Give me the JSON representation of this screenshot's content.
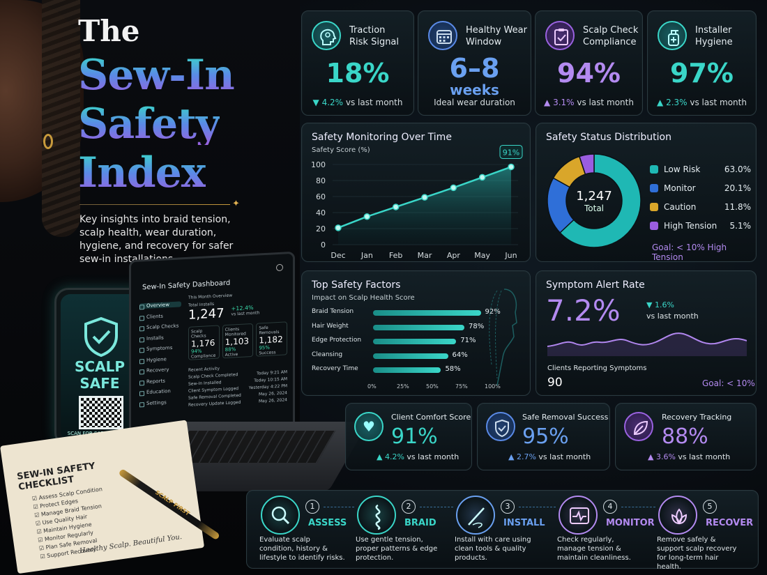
{
  "hero": {
    "title_the": "The",
    "title_line1": "Sew-In",
    "title_line2": "Safety",
    "title_line3": "Index",
    "subtitle": "Key insights into braid tension, scalp health, wear duration, hygiene, and recovery for safer sew-in installations."
  },
  "phone": {
    "brand": "SCALP SAFE",
    "scan_text": "SCAN FOR SAFE HAIR TIPS"
  },
  "laptop": {
    "title": "Sew-In Safety Dashboard",
    "nav": [
      "Overview",
      "Clients",
      "Scalp Checks",
      "Installs",
      "Symptoms",
      "Hygiene",
      "Recovery",
      "Reports",
      "Education",
      "Settings"
    ],
    "overview_label": "This Month Overview",
    "total_label": "Total Installs",
    "total_value": "1,247",
    "total_delta": "+12.4%",
    "total_delta_note": "vs last month",
    "cards": [
      {
        "label": "Scalp Checks",
        "value": "1,176",
        "pct": "94%",
        "note": "Compliance"
      },
      {
        "label": "Clients Monitored",
        "value": "1,103",
        "pct": "88%",
        "note": "Active"
      },
      {
        "label": "Safe Removals",
        "value": "1,182",
        "pct": "95%",
        "note": "Success"
      }
    ],
    "activity_label": "Recent Activity",
    "activity": [
      "Scalp Check Completed",
      "Sew-In Installed",
      "Client Symptom Logged",
      "Safe Removal Completed",
      "Recovery Update Logged"
    ],
    "activity_times": [
      "Today 9:21 AM",
      "Today 10:15 AM",
      "Yesterday 4:22 PM",
      "May 26, 2024",
      "May 26, 2024"
    ]
  },
  "notebook": {
    "title": "SEW-IN SAFETY CHECKLIST",
    "items": [
      "Assess Scalp Condition",
      "Protect Edges",
      "Manage Braid Tension",
      "Use Quality Hair",
      "Maintain Hygiene",
      "Monitor Regularly",
      "Plan Safe Removal",
      "Support Recovery"
    ],
    "footer": "Healthy Scalp. Beautiful You."
  },
  "pen_text": "SCALP FIRST",
  "kpis": [
    {
      "label_1": "Traction",
      "label_2": "Risk Signal",
      "value": "18%",
      "value_sub": "",
      "delta": "▼ 4.2%",
      "delta_note": "vs last month",
      "icon": "head-profile-icon",
      "accent": "#3ad6c8"
    },
    {
      "label_1": "Healthy Wear",
      "label_2": "Window",
      "value": "6–8",
      "value_sub": "weeks",
      "delta": "",
      "delta_note": "Ideal wear duration",
      "icon": "calendar-icon",
      "accent": "#5a8ae6"
    },
    {
      "label_1": "Scalp Check",
      "label_2": "Compliance",
      "value": "94%",
      "value_sub": "",
      "delta": "▲ 3.1%",
      "delta_note": "vs last month",
      "icon": "clipboard-check-icon",
      "accent": "#9a62e0"
    },
    {
      "label_1": "Installer",
      "label_2": "Hygiene",
      "value": "97%",
      "value_sub": "",
      "delta": "▲ 2.3%",
      "delta_note": "vs last month",
      "icon": "sanitizer-icon",
      "accent": "#3ad6c8"
    }
  ],
  "monitoring": {
    "title": "Safety Monitoring Over Time",
    "ylabel": "Safety Score (%)",
    "callout": "91%"
  },
  "distribution": {
    "title": "Safety Status Distribution",
    "total_value": "1,247",
    "total_label": "Total",
    "goal": "Goal: < 10% High Tension"
  },
  "factors": {
    "title": "Top Safety Factors",
    "subtitle": "Impact on Scalp Health Score"
  },
  "symptom": {
    "title": "Symptom Alert Rate",
    "value": "7.2%",
    "delta": "▼ 1.6%",
    "delta_note": "vs last month",
    "clients_label": "Clients Reporting Symptoms",
    "clients_value": "90",
    "goal": "Goal: < 10%"
  },
  "bottom_kpis": [
    {
      "label": "Client Comfort Score",
      "value": "91%",
      "delta": "▲ 4.2%",
      "delta_note": "vs last month",
      "icon": "heart-icon",
      "accent": "#3ad6c8"
    },
    {
      "label": "Safe Removal Success",
      "value": "95%",
      "delta": "▲ 2.7%",
      "delta_note": "vs last month",
      "icon": "shield-check-icon",
      "accent": "#5a8ae6"
    },
    {
      "label": "Recovery Tracking",
      "value": "88%",
      "delta": "▲ 3.6%",
      "delta_note": "vs last month",
      "icon": "leaf-icon",
      "accent": "#9a62e0"
    }
  ],
  "steps": [
    {
      "num": "1",
      "name": "ASSESS",
      "desc": "Evaluate scalp condition, history & lifestyle to identify risks.",
      "icon": "magnifier-icon",
      "accent": "#3ad6c8"
    },
    {
      "num": "2",
      "name": "BRAID",
      "desc": "Use gentle tension, proper patterns & edge protection.",
      "icon": "braid-icon",
      "accent": "#3ad6c8"
    },
    {
      "num": "3",
      "name": "INSTALL",
      "desc": "Install with care using clean tools & quality products.",
      "icon": "needle-icon",
      "accent": "#6aa0f0"
    },
    {
      "num": "4",
      "name": "MONITOR",
      "desc": "Check regularly, manage tension & maintain cleanliness.",
      "icon": "calendar-pulse-icon",
      "accent": "#b38af0"
    },
    {
      "num": "5",
      "name": "RECOVER",
      "desc": "Remove safely & support scalp recovery for long-term hair health.",
      "icon": "lotus-icon",
      "accent": "#b38af0"
    }
  ],
  "chart_data": [
    {
      "type": "area",
      "title": "Safety Monitoring Over Time",
      "ylabel": "Safety Score (%)",
      "categories": [
        "Dec",
        "Jan",
        "Feb",
        "Mar",
        "Apr",
        "May",
        "Jun"
      ],
      "values": [
        21,
        35,
        47,
        59,
        71,
        84,
        97
      ],
      "yticks": [
        0,
        20,
        40,
        60,
        80,
        100
      ],
      "ylim": [
        0,
        100
      ],
      "annotation": "91%"
    },
    {
      "type": "pie",
      "title": "Safety Status Distribution",
      "labels": [
        "Low Risk",
        "Monitor",
        "Caution",
        "High Tension"
      ],
      "values": [
        63.0,
        20.1,
        11.8,
        5.1
      ],
      "value_labels": [
        "63.0%",
        "20.1%",
        "11.8%",
        "5.1%"
      ],
      "colors": [
        "#1fb8b4",
        "#2f6fd8",
        "#d9a62a",
        "#9a5de0"
      ]
    },
    {
      "type": "bar",
      "title": "Top Safety Factors",
      "subtitle": "Impact on Scalp Health Score",
      "categories": [
        "Braid Tension",
        "Hair Weight",
        "Edge Protection",
        "Cleansing",
        "Recovery Time"
      ],
      "values": [
        92,
        78,
        71,
        64,
        58
      ],
      "value_labels": [
        "92%",
        "78%",
        "71%",
        "64%",
        "58%"
      ],
      "xticks": [
        "0%",
        "25%",
        "50%",
        "75%",
        "100%"
      ],
      "xlim": [
        0,
        100
      ]
    }
  ]
}
